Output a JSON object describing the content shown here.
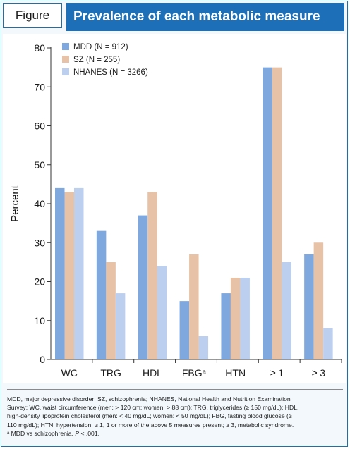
{
  "header": {
    "figure_label": "Figure",
    "title": "Prevalence of each metabolic measure"
  },
  "chart_data": {
    "type": "bar",
    "categories": [
      "WC",
      "TRG",
      "HDL",
      "FBGᵃ",
      "HTN",
      "≥ 1",
      "≥ 3"
    ],
    "series": [
      {
        "name": "MDD (N = 912)",
        "values": [
          44,
          33,
          37,
          15,
          17,
          75,
          27
        ]
      },
      {
        "name": "SZ (N = 255)",
        "values": [
          43,
          25,
          43,
          27,
          21,
          75,
          30
        ]
      },
      {
        "name": "NHANES (N = 3266)",
        "values": [
          44,
          17,
          24,
          6,
          21,
          25,
          8
        ]
      }
    ],
    "colors": [
      "#7fa8de",
      "#e8c2a6",
      "#bccfee"
    ],
    "ylabel": "Percent",
    "xlabel": "",
    "ylim": [
      0,
      80
    ],
    "yticks": [
      0,
      10,
      20,
      30,
      40,
      50,
      60,
      70,
      80
    ],
    "legend_position": "top-left",
    "grid": false
  },
  "footnote": {
    "lines": [
      "MDD, major depressive disorder; SZ, schizophrenia; NHANES, National Health and Nutrition Examination",
      "Survey; WC, waist circumference (men: > 120 cm; women: > 88 cm); TRG, triglycerides (≥ 150 mg/dL); HDL,",
      "high-density lipoprotein cholesterol (men: < 40 mg/dL; women: < 50 mg/dL); FBG, fasting blood glucose (≥",
      "110 mg/dL); HTN, hypertension; ≥ 1, 1 or more of the above 5 measures present; ≥ 3, metabolic syndrome."
    ],
    "note_marker": "ᵃ",
    "note_text": "MDD vs schizophrenia, ",
    "p_symbol": "P",
    "p_value": " < .001."
  }
}
